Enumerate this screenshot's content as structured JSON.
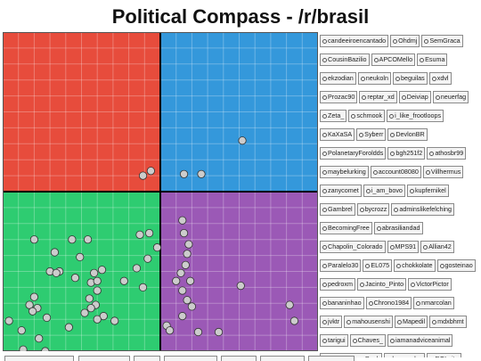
{
  "page": {
    "title": "Political Compass - /r/brasil"
  },
  "chart_data": {
    "type": "scatter",
    "title": "Political Compass - /r/brasil",
    "xlim": [
      -10,
      10
    ],
    "ylim": [
      -10,
      10
    ],
    "grid": true,
    "quadrant_colors": {
      "top_left": "#e74c3c",
      "top_right": "#3498db",
      "bottom_left": "#2ecc71",
      "bottom_right": "#9b59b6"
    },
    "point_color": "#cccccc",
    "points": [
      {
        "x": -0.6,
        "y": 1.3
      },
      {
        "x": -1.1,
        "y": 1.0
      },
      {
        "x": 1.5,
        "y": 1.1
      },
      {
        "x": 2.6,
        "y": 1.1
      },
      {
        "x": 5.2,
        "y": 3.2
      },
      {
        "x": 1.4,
        "y": -1.8
      },
      {
        "x": -1.3,
        "y": -2.7
      },
      {
        "x": -0.7,
        "y": -2.6
      },
      {
        "x": -0.2,
        "y": -3.5
      },
      {
        "x": -0.8,
        "y": -4.2
      },
      {
        "x": -1.5,
        "y": -4.8
      },
      {
        "x": -2.3,
        "y": -5.6
      },
      {
        "x": -1.1,
        "y": -6.0
      },
      {
        "x": -4.6,
        "y": -3.0
      },
      {
        "x": -5.6,
        "y": -3.0
      },
      {
        "x": -6.7,
        "y": -3.8
      },
      {
        "x": -5.1,
        "y": -4.1
      },
      {
        "x": -6.4,
        "y": -5.0
      },
      {
        "x": -7.0,
        "y": -5.0
      },
      {
        "x": -6.6,
        "y": -5.1
      },
      {
        "x": -4.2,
        "y": -5.1
      },
      {
        "x": -5.4,
        "y": -5.4
      },
      {
        "x": -4.4,
        "y": -5.7
      },
      {
        "x": -3.7,
        "y": -4.9
      },
      {
        "x": -4.0,
        "y": -5.6
      },
      {
        "x": -4.0,
        "y": -6.2
      },
      {
        "x": -4.5,
        "y": -6.7
      },
      {
        "x": -4.1,
        "y": -7.1
      },
      {
        "x": -4.4,
        "y": -7.3
      },
      {
        "x": -4.8,
        "y": -7.6
      },
      {
        "x": -3.6,
        "y": -7.8
      },
      {
        "x": -4.0,
        "y": -8.0
      },
      {
        "x": -2.9,
        "y": -8.1
      },
      {
        "x": -5.8,
        "y": -8.5
      },
      {
        "x": -8.0,
        "y": -6.6
      },
      {
        "x": -8.3,
        "y": -7.1
      },
      {
        "x": -7.8,
        "y": -7.3
      },
      {
        "x": -7.2,
        "y": -7.9
      },
      {
        "x": -8.1,
        "y": -7.5
      },
      {
        "x": -9.6,
        "y": -8.1
      },
      {
        "x": -8.8,
        "y": -8.7
      },
      {
        "x": -7.7,
        "y": -9.2
      },
      {
        "x": -8.7,
        "y": -9.9
      },
      {
        "x": -7.3,
        "y": -10.0
      },
      {
        "x": -8.0,
        "y": -3.0
      },
      {
        "x": 1.5,
        "y": -2.6
      },
      {
        "x": 1.8,
        "y": -3.3
      },
      {
        "x": 1.7,
        "y": -3.9
      },
      {
        "x": 1.6,
        "y": -4.6
      },
      {
        "x": 1.3,
        "y": -5.1
      },
      {
        "x": 1.0,
        "y": -5.6
      },
      {
        "x": 1.9,
        "y": -5.6
      },
      {
        "x": 1.4,
        "y": -6.2
      },
      {
        "x": 1.7,
        "y": -6.8
      },
      {
        "x": 2.0,
        "y": -7.2
      },
      {
        "x": 1.4,
        "y": -7.8
      },
      {
        "x": 2.4,
        "y": -8.8
      },
      {
        "x": 5.1,
        "y": -5.9
      },
      {
        "x": 8.2,
        "y": -7.1
      },
      {
        "x": 8.5,
        "y": -8.1
      },
      {
        "x": 0.4,
        "y": -8.4
      },
      {
        "x": 0.6,
        "y": -8.7
      },
      {
        "x": 3.7,
        "y": -8.8
      }
    ]
  },
  "legend": {
    "rows": [
      [
        "candeeiroencantado",
        "Ohdmj",
        "SemGraca"
      ],
      [
        "CousinBazilio",
        "APCOMello",
        "Esuma"
      ],
      [
        "ekzodian",
        "neukoln",
        "beguilas",
        "xdvl"
      ],
      [
        "Prozac90",
        "reptar_xd",
        "Deiviap",
        "neuerfag"
      ],
      [
        "Zeta_",
        "schmook",
        "i_like_frootloops"
      ],
      [
        "KaXaSA",
        "Syberr",
        "DevlonBR"
      ],
      [
        "PolanetaryForoldds",
        "bgh251f2",
        "athosbr99"
      ],
      [
        "maybelurking",
        "account08080",
        "Villhermus"
      ],
      [
        "zanycomet",
        "i_am_bovo",
        "kupfernikel"
      ],
      [
        "Gambrel",
        "bycrozz",
        "adminslikefelching"
      ],
      [
        "BecomingFree",
        "abrasiliandad"
      ],
      [
        "Chapolin_Colorado",
        "MPS91",
        "Allian42"
      ],
      [
        "Paralelo30",
        "EL075",
        "chokkolate",
        "gosteinao"
      ],
      [
        "pedroxm",
        "Jacinto_Pinto",
        "VictorPictor"
      ],
      [
        "bananinhao",
        "Chrono1984",
        "nmarcolan"
      ],
      [
        "jvktr",
        "mahousenshi",
        "Mapedil",
        "mdxbhmt"
      ],
      [
        "tarigui",
        "Chaves_",
        "iamanadviceanimal"
      ],
      [
        "Pyromaniac_Punk",
        "burgundus",
        "ROLeite"
      ]
    ]
  }
}
